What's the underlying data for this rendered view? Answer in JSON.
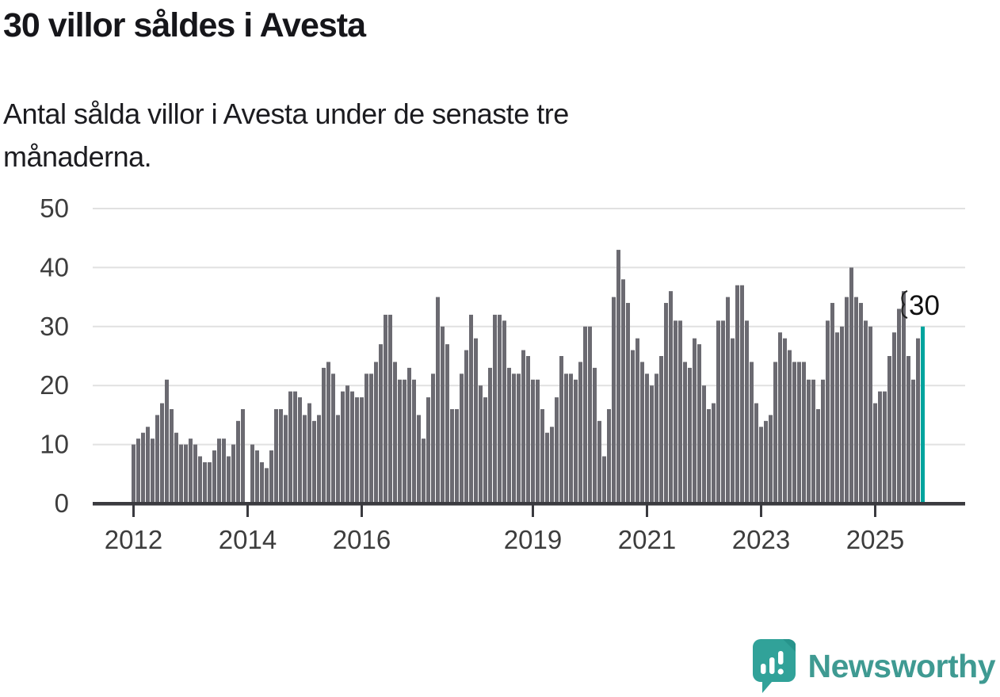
{
  "header": {
    "title": "30 villor såldes i Avesta",
    "subtitle_lines": [
      "Antal sålda villor i Avesta under de senaste tre",
      "månaderna."
    ]
  },
  "chart_data": {
    "type": "bar",
    "title": "30 villor såldes i Avesta",
    "subtitle": "Antal sålda villor i Avesta under de senaste tre månaderna.",
    "xlabel": "",
    "ylabel": "",
    "ylim": [
      0,
      50
    ],
    "y_ticks": [
      0,
      10,
      20,
      30,
      40,
      50
    ],
    "x_tick_labels": [
      "2012",
      "2014",
      "2016",
      "2019",
      "2021",
      "2023",
      "2025"
    ],
    "start_month": "2012-01",
    "frequency": "monthly",
    "grid": true,
    "years": [
      {
        "year": "2012",
        "values": [
          10,
          11,
          12,
          13,
          11,
          15,
          17,
          21,
          16,
          12,
          10,
          10
        ]
      },
      {
        "year": "2013",
        "values": [
          11,
          10,
          8,
          7,
          7,
          9,
          11,
          11,
          8,
          10,
          14,
          16
        ]
      },
      {
        "year": "2014",
        "values": [
          null,
          10,
          9,
          7,
          6,
          9,
          16,
          16,
          15,
          19,
          19,
          18
        ]
      },
      {
        "year": "2015",
        "values": [
          15,
          17,
          14,
          15,
          23,
          24,
          22,
          15,
          19,
          20,
          19,
          18
        ]
      },
      {
        "year": "2016",
        "values": [
          18,
          22,
          22,
          24,
          27,
          32,
          32,
          24,
          21,
          21,
          23,
          21
        ]
      },
      {
        "year": "2017",
        "values": [
          15,
          11,
          18,
          22,
          35,
          30,
          27,
          16,
          16,
          22,
          26,
          32
        ]
      },
      {
        "year": "2018",
        "values": [
          28,
          20,
          18,
          23,
          32,
          32,
          31,
          23,
          22,
          22,
          26,
          25
        ]
      },
      {
        "year": "2019",
        "values": [
          21,
          21,
          16,
          12,
          13,
          18,
          25,
          22,
          22,
          21,
          24,
          30
        ]
      },
      {
        "year": "2020",
        "values": [
          30,
          23,
          14,
          8,
          16,
          35,
          43,
          38,
          34,
          26,
          28,
          24
        ]
      },
      {
        "year": "2021",
        "values": [
          22,
          20,
          22,
          25,
          34,
          36,
          31,
          31,
          24,
          23,
          28,
          27
        ]
      },
      {
        "year": "2022",
        "values": [
          20,
          16,
          17,
          31,
          31,
          35,
          28,
          37,
          37,
          31,
          24,
          17
        ]
      },
      {
        "year": "2023",
        "values": [
          13,
          14,
          15,
          24,
          29,
          28,
          26,
          24,
          24,
          24,
          21,
          21
        ]
      },
      {
        "year": "2024",
        "values": [
          16,
          21,
          31,
          34,
          29,
          30,
          35,
          40,
          35,
          34,
          31,
          30
        ]
      },
      {
        "year": "2025",
        "values": [
          17,
          19,
          19,
          25,
          29,
          33,
          36,
          25,
          21,
          28,
          30
        ]
      }
    ],
    "missing_months": [
      "2014-01"
    ],
    "highlight": {
      "month": "2025-11",
      "value": 30
    },
    "legend": null,
    "colors": {
      "bar": "#6b6a71",
      "highlight": "#00a49e",
      "axis": "#3a3a3f",
      "grid": "#e1e1e1",
      "tick_label": "#3d3d3d",
      "annotation": "#111111"
    }
  },
  "annotation": {
    "label": "30"
  },
  "footer": {
    "brand": "Newsworthy"
  }
}
